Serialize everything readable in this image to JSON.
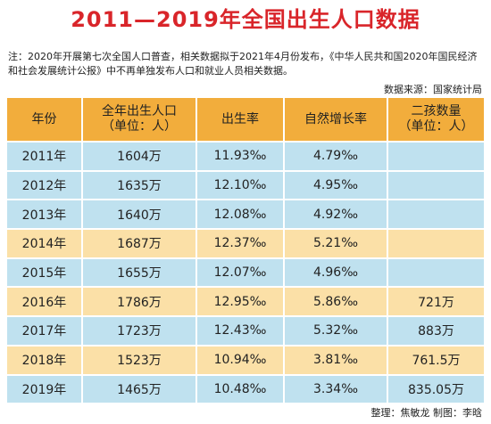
{
  "title": "2011—2019年全国出生人口数据",
  "note": "注：2020年开展第七次全国人口普查，相关数据拟于2021年4月份发布，《中华人民共和国2020年国民经济和社会发展统计公报》中不再单独发布人口和就业人员相关数据。",
  "source": "数据来源：国家统计局",
  "table": {
    "headers": {
      "year": "年份",
      "births_line1": "全年出生人口",
      "births_line2": "（单位：人）",
      "birth_rate": "出生率",
      "natural_growth": "自然增长率",
      "second_child_line1": "二孩数量",
      "second_child_line2": "（单位：人）"
    },
    "rows": [
      {
        "year": "2011年",
        "births": "1604万",
        "birth_rate": "11.93‰",
        "natural_growth": "4.79‰",
        "second_child": ""
      },
      {
        "year": "2012年",
        "births": "1635万",
        "birth_rate": "12.10‰",
        "natural_growth": "4.95‰",
        "second_child": ""
      },
      {
        "year": "2013年",
        "births": "1640万",
        "birth_rate": "12.08‰",
        "natural_growth": "4.92‰",
        "second_child": ""
      },
      {
        "year": "2014年",
        "births": "1687万",
        "birth_rate": "12.37‰",
        "natural_growth": "5.21‰",
        "second_child": ""
      },
      {
        "year": "2015年",
        "births": "1655万",
        "birth_rate": "12.07‰",
        "natural_growth": "4.96‰",
        "second_child": ""
      },
      {
        "year": "2016年",
        "births": "1786万",
        "birth_rate": "12.95‰",
        "natural_growth": "5.86‰",
        "second_child": "721万"
      },
      {
        "year": "2017年",
        "births": "1723万",
        "birth_rate": "12.43‰",
        "natural_growth": "5.32‰",
        "second_child": "883万"
      },
      {
        "year": "2018年",
        "births": "1523万",
        "birth_rate": "10.94‰",
        "natural_growth": "3.81‰",
        "second_child": "761.5万"
      },
      {
        "year": "2019年",
        "births": "1465万",
        "birth_rate": "10.48‰",
        "natural_growth": "3.34‰",
        "second_child": "835.05万"
      }
    ]
  },
  "credit": "整理：焦敏龙  制图：李晗",
  "colors": {
    "title": "#d9252a",
    "header_bg": "#f2ad3c",
    "row_blue": "#bfe1ef",
    "row_yellow": "#fbe0a7"
  }
}
